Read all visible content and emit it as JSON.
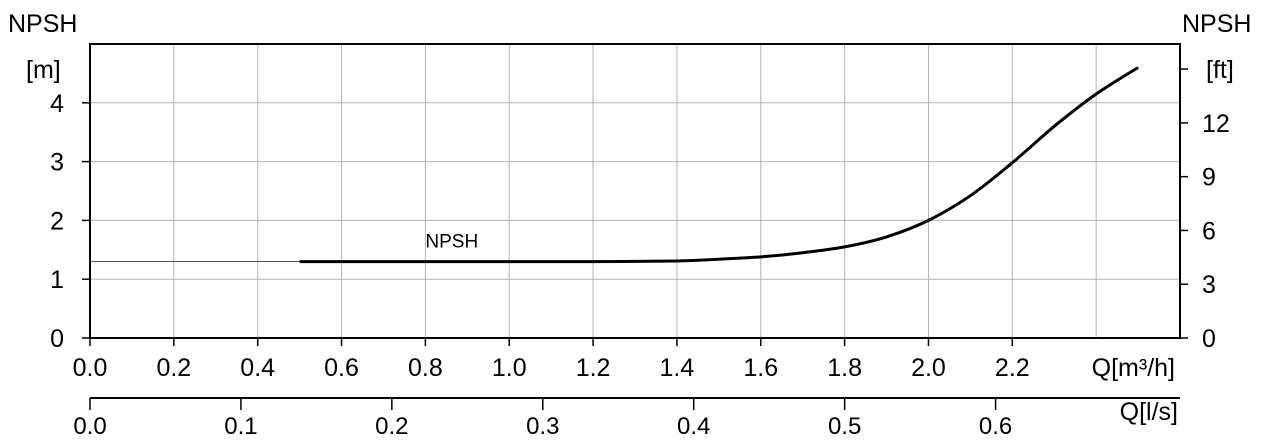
{
  "chart_data": {
    "type": "line",
    "title": "",
    "y_left": {
      "label_top": "NPSH",
      "unit": "[m]",
      "range": [
        0,
        5
      ],
      "ticks": [
        0,
        1,
        2,
        3,
        4
      ]
    },
    "y_right": {
      "label_top": "NPSH",
      "unit": "[ft]",
      "range": [
        0,
        16.4
      ],
      "ticks": [
        0,
        3,
        6,
        9,
        12
      ]
    },
    "x_primary": {
      "label": "Q[m³/h]",
      "range": [
        0,
        2.6
      ],
      "ticks": [
        "0.0",
        "0.2",
        "0.4",
        "0.6",
        "0.8",
        "1.0",
        "1.2",
        "1.4",
        "1.6",
        "1.8",
        "2.0",
        "2.2"
      ]
    },
    "x_secondary": {
      "label": "Q[l/s]",
      "range": [
        0,
        0.7222
      ],
      "ticks": [
        "0.0",
        "0.1",
        "0.2",
        "0.3",
        "0.4",
        "0.5",
        "0.6"
      ]
    },
    "grid": true,
    "series": [
      {
        "name": "NPSH",
        "x": [
          0.5,
          0.8,
          1.0,
          1.2,
          1.4,
          1.5,
          1.6,
          1.7,
          1.8,
          1.9,
          2.0,
          2.1,
          2.2,
          2.3,
          2.4,
          2.5
        ],
        "y": [
          1.3,
          1.3,
          1.3,
          1.3,
          1.31,
          1.34,
          1.38,
          1.45,
          1.55,
          1.72,
          2.0,
          2.42,
          2.98,
          3.6,
          4.15,
          4.6
        ]
      }
    ]
  }
}
